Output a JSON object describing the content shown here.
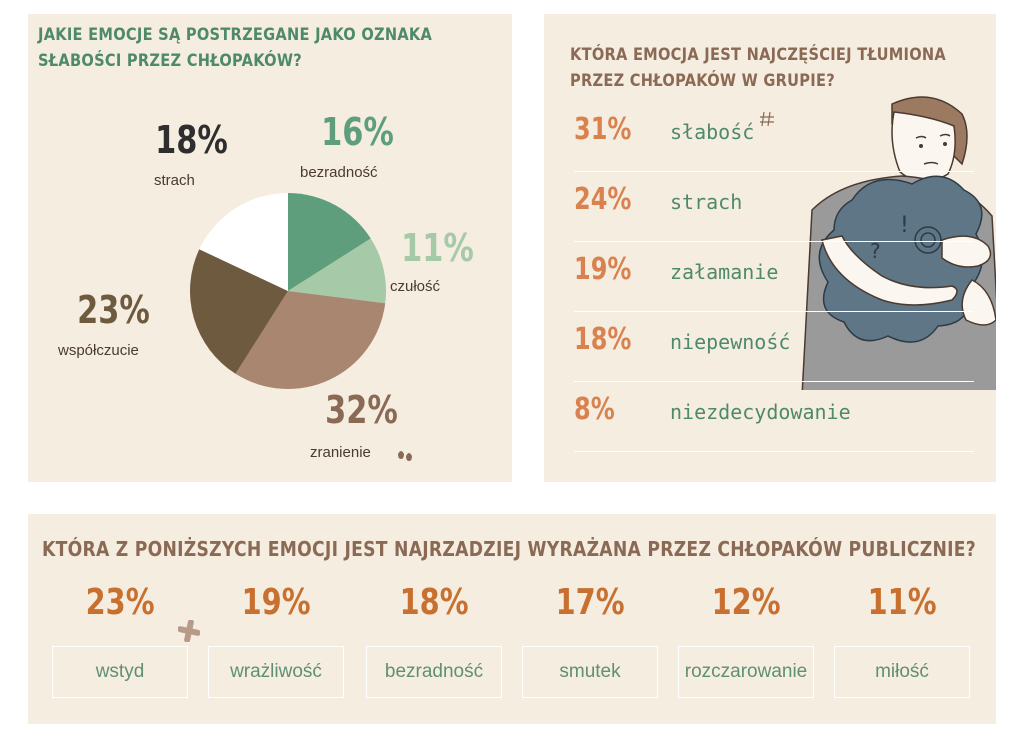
{
  "pie_panel": {
    "title": "JAKIE EMOCJE SĄ POSTRZEGANE JAKO OZNAKA SŁABOŚCI PRZEZ CHŁOPAKÓW?",
    "title_line1": "JAKIE EMOCJE SĄ POSTRZEGANE JAKO OZNAKA",
    "title_line2": "SŁABOŚCI PRZEZ CHŁOPAKÓW?"
  },
  "list_panel": {
    "title": "KTÓRA EMOCJA JEST NAJCZĘŚCIEJ TŁUMIONA PRZEZ CHŁOPAKÓW W GRUPIE?",
    "title_line1": "KTÓRA EMOCJA JEST NAJCZĘŚCIEJ TŁUMIONA",
    "title_line2": "PRZEZ CHŁOPAKÓW W GRUPIE?"
  },
  "bottom_panel": {
    "title": "KTÓRA Z PONIŻSZYCH EMOCJI JEST NAJRZADZIEJ WYRAŻANA PRZEZ CHŁOPAKÓW PUBLICZNIE?"
  },
  "colors": {
    "panel_bg": "#f6ede1",
    "heading_green": "#4e8a6a",
    "heading_brown": "#8a6a55",
    "pct_orange": "#d9824f",
    "pct_bottom": "#c8702f",
    "label_green": "#4e8a6a"
  },
  "chart_data": [
    {
      "type": "pie",
      "title": "JAKIE EMOCJE SĄ POSTRZEGANE JAKO OZNAKA SŁABOŚCI PRZEZ CHŁOPAKÓW?",
      "slices": [
        {
          "label": "bezradność",
          "value": 16,
          "display": "16%",
          "color": "#5e9e7c"
        },
        {
          "label": "czułość",
          "value": 11,
          "display": "11%",
          "color": "#a6c9a8"
        },
        {
          "label": "zranienie",
          "value": 32,
          "display": "32%",
          "color": "#a88670"
        },
        {
          "label": "współczucie",
          "value": 23,
          "display": "23%",
          "color": "#6e5a3e"
        },
        {
          "label": "strach",
          "value": 18,
          "display": "18%",
          "color": "#ffffff"
        }
      ],
      "label_colors": {
        "bezradność": "#5e9e7c",
        "czułość": "#a6c9a8",
        "zranienie": "#8a6a55",
        "współczucie": "#6e5a3e",
        "strach": "#2e2e2e"
      }
    },
    {
      "type": "table",
      "title": "KTÓRA EMOCJA JEST NAJCZĘŚCIEJ TŁUMIONA PRZEZ CHŁOPAKÓW W GRUPIE?",
      "rows": [
        {
          "label": "słabość",
          "value": 31,
          "display": "31%"
        },
        {
          "label": "strach",
          "value": 24,
          "display": "24%"
        },
        {
          "label": "załamanie",
          "value": 19,
          "display": "19%"
        },
        {
          "label": "niepewność",
          "value": 18,
          "display": "18%"
        },
        {
          "label": "niezdecydowanie",
          "value": 8,
          "display": "8%"
        }
      ]
    },
    {
      "type": "table",
      "title": "KTÓRA Z PONIŻSZYCH EMOCJI JEST NAJRZADZIEJ WYRAŻANA PRZEZ CHŁOPAKÓW PUBLICZNIE?",
      "rows": [
        {
          "label": "wstyd",
          "value": 23,
          "display": "23%"
        },
        {
          "label": "wrażliwość",
          "value": 19,
          "display": "19%"
        },
        {
          "label": "bezradność",
          "value": 18,
          "display": "18%"
        },
        {
          "label": "smutek",
          "value": 17,
          "display": "17%"
        },
        {
          "label": "rozczarowanie",
          "value": 12,
          "display": "12%"
        },
        {
          "label": "miłość",
          "value": 11,
          "display": "11%"
        }
      ]
    }
  ]
}
